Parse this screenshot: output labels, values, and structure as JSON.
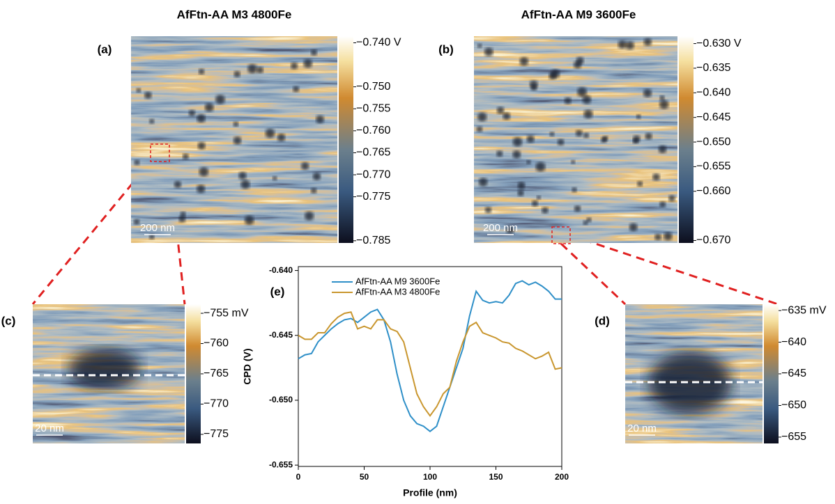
{
  "panels": [
    {
      "label": "(a)",
      "title": "AfFtn-AA M3 4800Fe",
      "scale_bar": "200 nm",
      "colorbar": {
        "lim": [
          -0.7855,
          -0.7385
        ],
        "ticks": [
          {
            "value": -0.74,
            "label": "−0.740 V"
          },
          {
            "value": -0.75,
            "label": "−0.750"
          },
          {
            "value": -0.755,
            "label": "−0.755"
          },
          {
            "value": -0.76,
            "label": "−0.760"
          },
          {
            "value": -0.765,
            "label": "−0.765"
          },
          {
            "value": -0.77,
            "label": "−0.770"
          },
          {
            "value": -0.775,
            "label": "−0.775"
          },
          {
            "value": -0.785,
            "label": "−0.785"
          }
        ]
      }
    },
    {
      "label": "(b)",
      "title": "AfFtn-AA M9 3600Fe",
      "scale_bar": "200 nm",
      "colorbar": {
        "lim": [
          -0.6705,
          -0.6285
        ],
        "ticks": [
          {
            "value": -0.63,
            "label": "−0.630 V"
          },
          {
            "value": -0.635,
            "label": "−0.635"
          },
          {
            "value": -0.64,
            "label": "−0.640"
          },
          {
            "value": -0.645,
            "label": "−0.645"
          },
          {
            "value": -0.65,
            "label": "−0.650"
          },
          {
            "value": -0.655,
            "label": "−0.655"
          },
          {
            "value": -0.66,
            "label": "−0.660"
          },
          {
            "value": -0.67,
            "label": "−0.670"
          }
        ]
      }
    },
    {
      "label": "(c)",
      "scale_bar": "20 nm",
      "colorbar": {
        "lim": [
          -776.5,
          -753.5
        ],
        "ticks": [
          {
            "value": -755,
            "label": "−755 mV"
          },
          {
            "value": -760,
            "label": "−760"
          },
          {
            "value": -765,
            "label": "−765"
          },
          {
            "value": -770,
            "label": "−770"
          },
          {
            "value": -775,
            "label": "−775"
          }
        ]
      }
    },
    {
      "label": "(d)",
      "scale_bar": "20 nm",
      "colorbar": {
        "lim": [
          -656,
          -634
        ],
        "ticks": [
          {
            "value": -635,
            "label": "−635 mV"
          },
          {
            "value": -640,
            "label": "−640"
          },
          {
            "value": -645,
            "label": "−645"
          },
          {
            "value": -650,
            "label": "−650"
          },
          {
            "value": -655,
            "label": "−655"
          }
        ]
      }
    }
  ],
  "chart_data": {
    "type": "line",
    "label": "(e)",
    "x_label": "Profile (nm)",
    "y_label": "CPD (V)",
    "x": [
      0,
      5,
      10,
      15,
      20,
      25,
      30,
      35,
      40,
      45,
      50,
      55,
      60,
      65,
      70,
      75,
      80,
      85,
      90,
      95,
      100,
      105,
      110,
      115,
      120,
      125,
      130,
      135,
      140,
      145,
      150,
      155,
      160,
      165,
      170,
      175,
      180,
      185,
      190,
      195,
      200
    ],
    "series": [
      {
        "name": "AfFtn-AA M9 3600Fe",
        "color": "#2e8fc8",
        "values": [
          -0.6468,
          -0.6465,
          -0.6464,
          -0.6455,
          -0.645,
          -0.6445,
          -0.6441,
          -0.6438,
          -0.6437,
          -0.644,
          -0.6436,
          -0.6432,
          -0.643,
          -0.6438,
          -0.6455,
          -0.648,
          -0.65,
          -0.6512,
          -0.6518,
          -0.652,
          -0.6524,
          -0.652,
          -0.6505,
          -0.649,
          -0.6475,
          -0.646,
          -0.6435,
          -0.6416,
          -0.6423,
          -0.6425,
          -0.6424,
          -0.6425,
          -0.6419,
          -0.641,
          -0.6408,
          -0.6411,
          -0.6409,
          -0.6412,
          -0.6416,
          -0.6422,
          -0.6422
        ]
      },
      {
        "name": "AfFtn-AA M3 4800Fe",
        "color": "#c9962e",
        "values": [
          -0.645,
          -0.6453,
          -0.6453,
          -0.6448,
          -0.6448,
          -0.6441,
          -0.6436,
          -0.6433,
          -0.6432,
          -0.6445,
          -0.6443,
          -0.6445,
          -0.6438,
          -0.6438,
          -0.6445,
          -0.6447,
          -0.6455,
          -0.6475,
          -0.6495,
          -0.6505,
          -0.6512,
          -0.6505,
          -0.6495,
          -0.649,
          -0.647,
          -0.6455,
          -0.6443,
          -0.644,
          -0.6448,
          -0.645,
          -0.6452,
          -0.6455,
          -0.6456,
          -0.646,
          -0.6462,
          -0.6465,
          -0.6468,
          -0.6466,
          -0.6463,
          -0.6476,
          -0.6475
        ]
      }
    ],
    "xlim": [
      0,
      200
    ],
    "xticks": [
      0,
      50,
      100,
      150,
      200
    ],
    "ylim": [
      -0.6551,
      -0.6397
    ],
    "yticks": [
      {
        "value": -0.64,
        "label": "-0.640"
      },
      {
        "value": -0.645,
        "label": "-0.645"
      },
      {
        "value": -0.65,
        "label": "-0.650"
      },
      {
        "value": -0.655,
        "label": "-0.655"
      }
    ],
    "legend": "upper left"
  }
}
